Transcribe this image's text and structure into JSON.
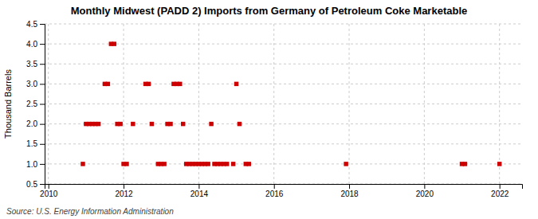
{
  "chart_data": {
    "type": "scatter",
    "title": "Monthly Midwest (PADD 2) Imports from Germany of Petroleum Coke Marketable",
    "y_label": "Thousand Barrels",
    "source": "Source: U.S. Energy Information Administration",
    "x": [
      2010.917,
      2011.0,
      2011.083,
      2011.167,
      2011.25,
      2011.333,
      2011.5,
      2011.583,
      2011.667,
      2011.75,
      2011.833,
      2011.917,
      2012.0,
      2012.083,
      2012.25,
      2012.583,
      2012.667,
      2012.75,
      2012.917,
      2013.0,
      2013.083,
      2013.167,
      2013.25,
      2013.333,
      2013.417,
      2013.5,
      2013.583,
      2013.667,
      2013.75,
      2013.833,
      2013.917,
      2014.0,
      2014.083,
      2014.167,
      2014.25,
      2014.333,
      2014.417,
      2014.5,
      2014.583,
      2014.667,
      2014.75,
      2014.917,
      2015.0,
      2015.083,
      2015.25,
      2015.333,
      2017.917,
      2021.0,
      2021.083,
      2022.0
    ],
    "values": [
      1.0,
      2.0,
      2.0,
      2.0,
      2.0,
      2.0,
      3.0,
      3.0,
      4.0,
      4.0,
      2.0,
      2.0,
      1.0,
      1.0,
      2.0,
      3.0,
      3.0,
      2.0,
      1.0,
      1.0,
      1.0,
      2.0,
      2.0,
      3.0,
      3.0,
      3.0,
      2.0,
      1.0,
      1.0,
      1.0,
      1.0,
      1.0,
      1.0,
      1.0,
      1.0,
      2.0,
      1.0,
      1.0,
      1.0,
      1.0,
      1.0,
      1.0,
      3.0,
      2.0,
      1.0,
      1.0,
      1.0,
      1.0,
      1.0,
      1.0
    ],
    "color": "#cc0000",
    "marker": "square",
    "grid": true,
    "xlim": [
      2009.9,
      2022.6
    ],
    "ylim": [
      0.5,
      4.5
    ],
    "xticks": [
      2010,
      2012,
      2014,
      2016,
      2018,
      2020,
      2022
    ],
    "yticks": [
      0.5,
      {
        "value": 1.0,
        "label": "1.0"
      },
      1.5,
      {
        "value": 2.0,
        "label": "2.0"
      },
      2.5,
      {
        "value": 3.0,
        "label": "3.0"
      },
      3.5,
      {
        "value": 4.0,
        "label": "4.0"
      },
      4.5
    ]
  }
}
